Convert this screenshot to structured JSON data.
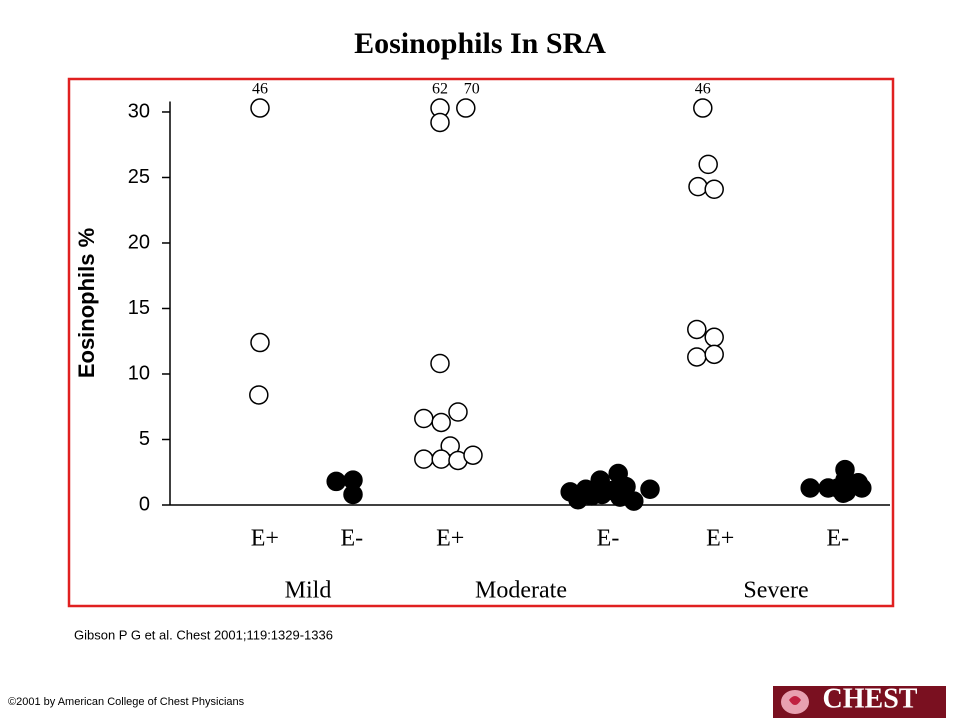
{
  "chart_data": {
    "type": "scatter",
    "title": "Eosinophils In SRA",
    "y_label": "Eosinophils %",
    "xlim": [
      0,
      12
    ],
    "ylim": [
      0,
      30.8
    ],
    "yticks": [
      0,
      5,
      10,
      15,
      20,
      25,
      30
    ],
    "xticks": [
      {
        "value": 1.58,
        "label": "E+"
      },
      {
        "value": 3.03,
        "label": "E-"
      },
      {
        "value": 4.67,
        "label": "E+"
      },
      {
        "value": 7.3,
        "label": "E-"
      },
      {
        "value": 9.17,
        "label": "E+"
      },
      {
        "value": 11.13,
        "label": "E-"
      }
    ],
    "group_labels": [
      {
        "value": 2.3,
        "label": "Mild"
      },
      {
        "value": 5.85,
        "label": "Moderate"
      },
      {
        "value": 10.1,
        "label": "Severe"
      }
    ],
    "series": [
      {
        "color": "#000000",
        "filled": false,
        "x": [
          1.5,
          1.5,
          1.48,
          4.5,
          4.5,
          4.93,
          4.5,
          4.23,
          4.52,
          4.8,
          4.67,
          4.23,
          4.52,
          4.8,
          5.05,
          8.88,
          8.97,
          8.8,
          9.07,
          8.78,
          9.07,
          8.78,
          9.07
        ],
        "values": [
          30.3,
          12.4,
          8.4,
          30.3,
          29.2,
          30.3,
          10.8,
          6.6,
          6.3,
          7.1,
          4.5,
          3.5,
          3.5,
          3.4,
          3.8,
          30.3,
          26.0,
          24.3,
          24.1,
          13.4,
          12.8,
          11.3,
          11.5
        ]
      },
      {
        "color": "#000000",
        "filled": true,
        "x": [
          2.77,
          3.05,
          3.05,
          6.67,
          6.93,
          7.17,
          7.47,
          7.2,
          6.8,
          7.03,
          7.37,
          7.6,
          7.5,
          7.73,
          8.0,
          10.67,
          10.97,
          11.25,
          11.25,
          11.13,
          11.27,
          11.53,
          11.47,
          11.22
        ],
        "values": [
          1.8,
          1.9,
          0.8,
          1.0,
          1.2,
          1.9,
          2.4,
          0.8,
          0.4,
          0.7,
          1.1,
          1.4,
          0.6,
          0.3,
          1.2,
          1.3,
          1.3,
          2.7,
          1.9,
          1.3,
          1.0,
          1.3,
          1.7,
          0.9
        ]
      }
    ],
    "annotations": [
      {
        "x": 1.5,
        "y": 31.7,
        "text": "46"
      },
      {
        "x": 4.5,
        "y": 31.7,
        "text": "62"
      },
      {
        "x": 5.03,
        "y": 31.7,
        "text": "70"
      },
      {
        "x": 8.88,
        "y": 31.7,
        "text": "46"
      }
    ]
  },
  "footer": {
    "citation": "Gibson P G et al. Chest 2001;119:1329-1336",
    "copyright": "©2001 by American College of Chest Physicians",
    "logo": "CHEST"
  }
}
